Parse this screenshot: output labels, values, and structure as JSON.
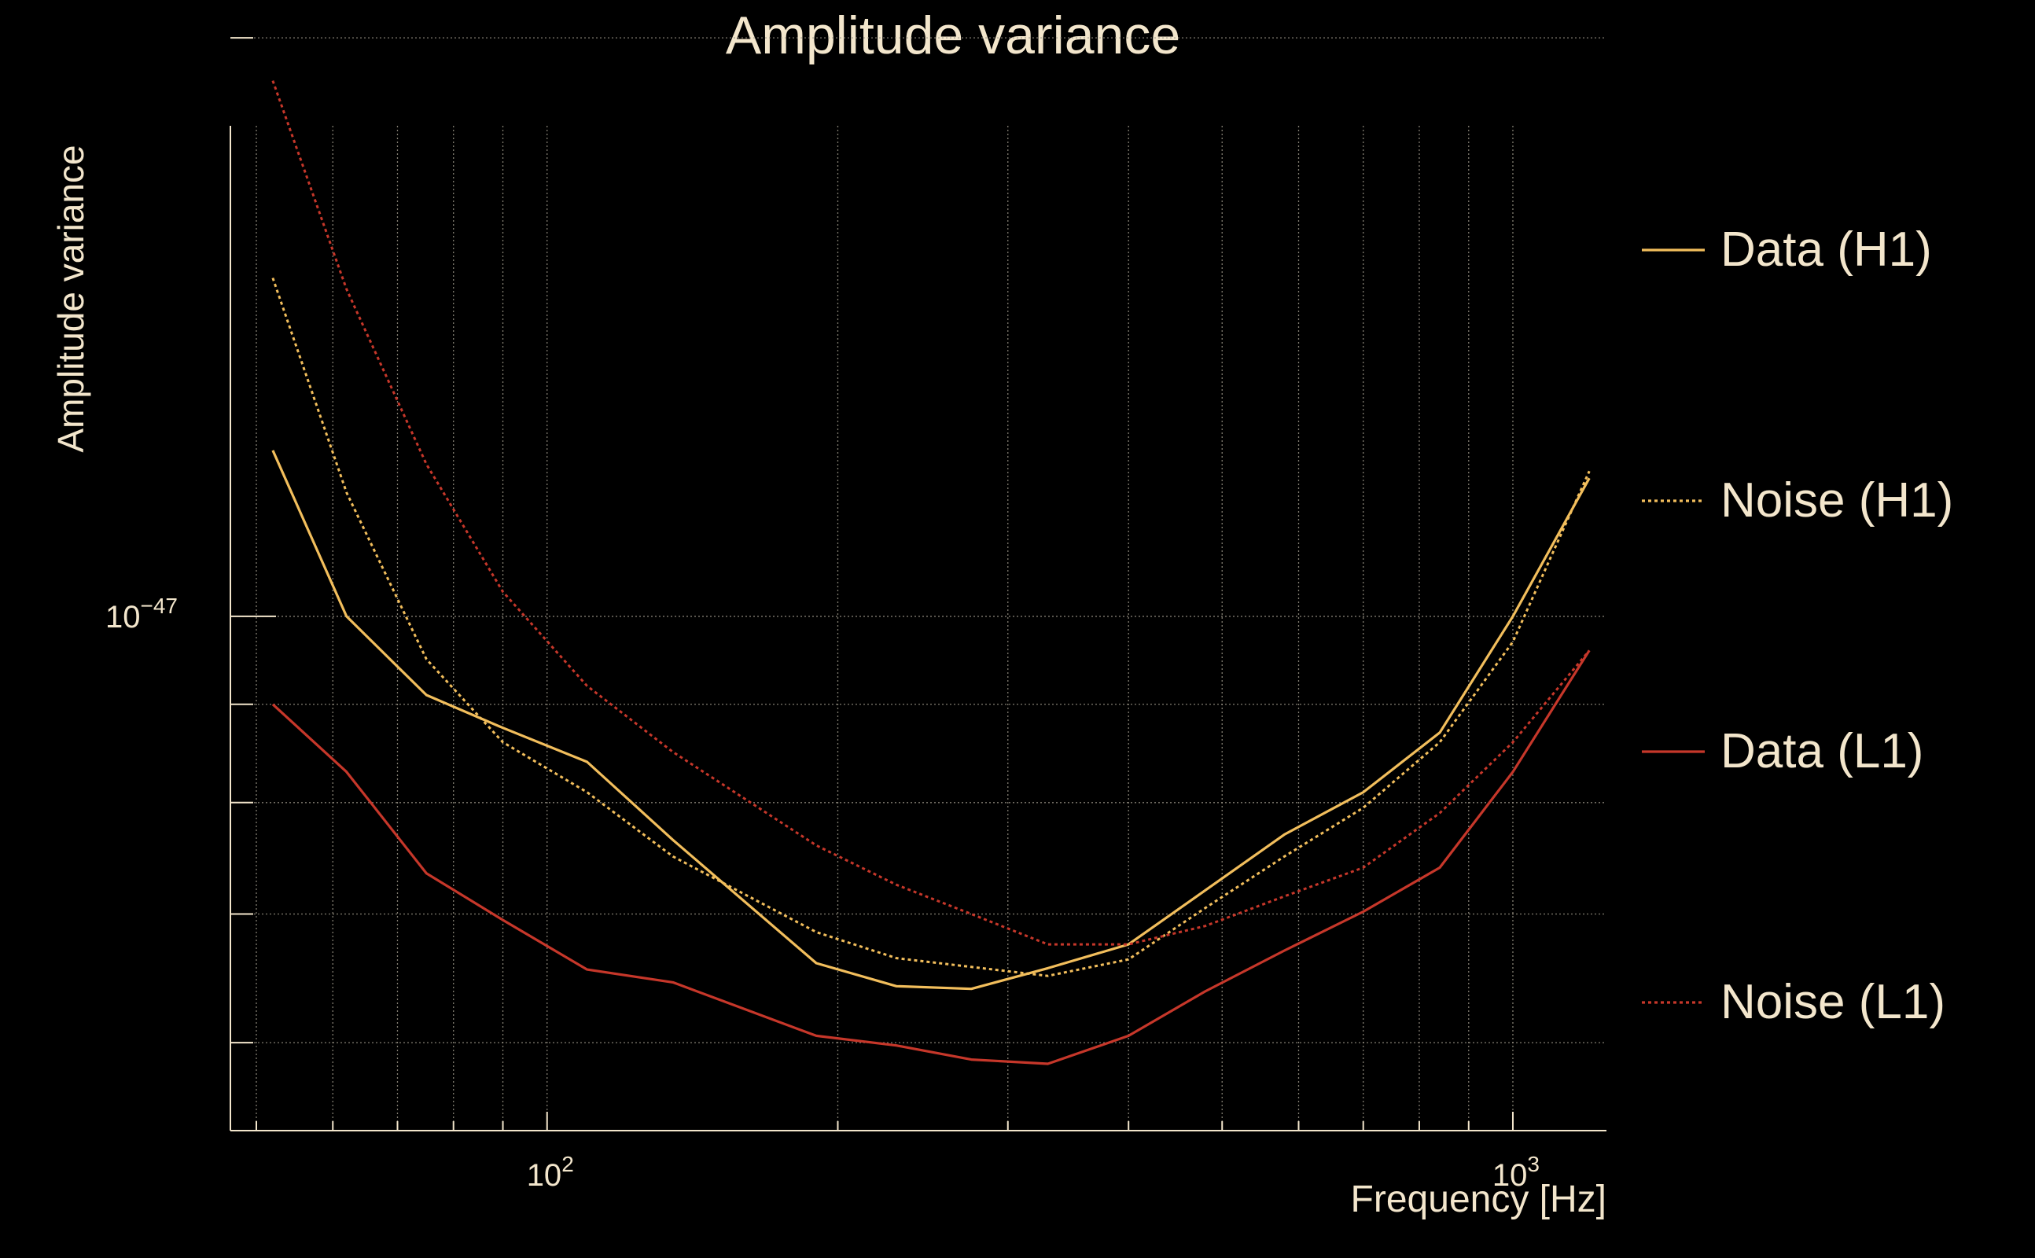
{
  "chart_data": {
    "type": "line",
    "title": "Amplitude variance",
    "xlabel": "Frequency [Hz]",
    "ylabel": "Amplitude variance",
    "x_scale": "log",
    "y_scale": "log",
    "xlim": [
      47,
      1250
    ],
    "ylim": [
      5.4e-48,
      1.8e-47
    ],
    "grid": true,
    "legend_position": "right",
    "x_ticks": [
      {
        "value": 100,
        "label": "10",
        "exp": "2"
      },
      {
        "value": 1000,
        "label": "10",
        "exp": "3"
      }
    ],
    "y_ticks": [
      {
        "value": 1e-47,
        "label": "10",
        "exp": "−47"
      }
    ],
    "x_minor_ticks": [
      50,
      60,
      70,
      80,
      90,
      200,
      300,
      400,
      500,
      600,
      700,
      800,
      900
    ],
    "y_minor_ticks": [
      6e-48,
      7e-48,
      8e-48,
      9e-48,
      2e-47
    ],
    "x": [
      52,
      62,
      75,
      90,
      110,
      135,
      190,
      230,
      275,
      330,
      400,
      480,
      580,
      700,
      840,
      1000,
      1200
    ],
    "series": [
      {
        "name": "Data (H1)",
        "color": "#f2be5c",
        "style": "solid",
        "values": [
          1.22e-47,
          1e-47,
          9.1e-48,
          8.75e-48,
          8.4e-48,
          7.65e-48,
          6.6e-48,
          6.42e-48,
          6.4e-48,
          6.56e-48,
          6.75e-48,
          7.2e-48,
          7.7e-48,
          8.1e-48,
          8.7e-48,
          1e-47,
          1.18e-47
        ]
      },
      {
        "name": "Noise (H1)",
        "color": "#f2be5c",
        "style": "dotted",
        "values": [
          1.5e-47,
          1.16e-47,
          9.5e-48,
          8.6e-48,
          8.1e-48,
          7.5e-48,
          6.85e-48,
          6.64e-48,
          6.57e-48,
          6.5e-48,
          6.63e-48,
          7.05e-48,
          7.5e-48,
          7.95e-48,
          8.6e-48,
          9.7e-48,
          1.19e-47
        ]
      },
      {
        "name": "Data (L1)",
        "color": "#c6372a",
        "style": "solid",
        "values": [
          9e-48,
          8.3e-48,
          7.35e-48,
          6.95e-48,
          6.55e-48,
          6.45e-48,
          6.05e-48,
          5.98e-48,
          5.88e-48,
          5.85e-48,
          6.05e-48,
          6.38e-48,
          6.7e-48,
          7.02e-48,
          7.4e-48,
          8.3e-48,
          9.6e-48
        ]
      },
      {
        "name": "Noise (L1)",
        "color": "#c6372a",
        "style": "dotted",
        "values": [
          1.9e-47,
          1.48e-47,
          1.2e-47,
          1.03e-47,
          9.2e-48,
          8.5e-48,
          7.6e-48,
          7.25e-48,
          7e-48,
          6.75e-48,
          6.75e-48,
          6.9e-48,
          7.15e-48,
          7.4e-48,
          7.9e-48,
          8.6e-48,
          9.6e-48
        ]
      }
    ]
  }
}
